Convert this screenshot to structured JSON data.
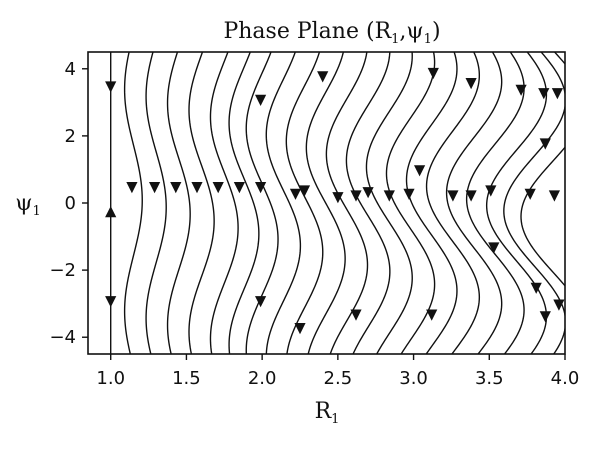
{
  "chart_data": {
    "type": "streamplot",
    "title_main": "Phase Plane (R",
    "title_sub1": "1",
    "title_mid": ",ψ",
    "title_sub2": "1",
    "title_end": ")",
    "xlabel_main": "R",
    "xlabel_sub": "1",
    "ylabel_main": "ψ",
    "ylabel_sub": "1",
    "xlim": [
      0.85,
      4.0
    ],
    "ylim": [
      -4.5,
      4.5
    ],
    "xticks": [
      1.0,
      1.5,
      2.0,
      2.5,
      3.0,
      3.5,
      4.0
    ],
    "xtick_labels": [
      "1.0",
      "1.5",
      "2.0",
      "2.5",
      "3.0",
      "3.5",
      "4.0"
    ],
    "yticks": [
      4,
      2,
      0,
      -2,
      -4
    ],
    "ytick_labels": [
      "4",
      "2",
      "0",
      "−2",
      "−4"
    ],
    "grid": false,
    "legend": "none",
    "streamline_color": "#111111",
    "streamline_r_values": [
      1.0,
      1.15,
      1.3,
      1.45,
      1.6,
      1.75,
      1.88,
      2.0,
      2.14,
      2.28,
      2.42,
      2.56,
      2.7,
      2.84,
      2.98,
      3.12,
      3.26,
      3.4,
      3.54,
      3.68,
      3.8,
      3.92
    ],
    "arrows": [
      {
        "r": 1.0,
        "psi": 3.5,
        "dir": "down"
      },
      {
        "r": 1.0,
        "psi": -0.3,
        "dir": "up"
      },
      {
        "r": 1.0,
        "psi": -2.9,
        "dir": "down"
      },
      {
        "r": 1.14,
        "psi": 0.5,
        "dir": "down"
      },
      {
        "r": 1.29,
        "psi": 0.5,
        "dir": "down"
      },
      {
        "r": 1.43,
        "psi": 0.5,
        "dir": "down"
      },
      {
        "r": 1.57,
        "psi": 0.5,
        "dir": "down"
      },
      {
        "r": 1.71,
        "psi": 0.5,
        "dir": "down"
      },
      {
        "r": 1.85,
        "psi": 0.5,
        "dir": "down"
      },
      {
        "r": 1.99,
        "psi": 0.5,
        "dir": "down"
      },
      {
        "r": 1.99,
        "psi": 3.1,
        "dir": "down"
      },
      {
        "r": 1.99,
        "psi": -2.9,
        "dir": "down"
      },
      {
        "r": 2.22,
        "psi": 0.3,
        "dir": "down"
      },
      {
        "r": 2.28,
        "psi": 0.4,
        "dir": "down"
      },
      {
        "r": 2.25,
        "psi": -3.7,
        "dir": "down"
      },
      {
        "r": 2.4,
        "psi": 3.8,
        "dir": "down"
      },
      {
        "r": 2.5,
        "psi": 0.2,
        "dir": "down"
      },
      {
        "r": 2.62,
        "psi": 0.25,
        "dir": "down"
      },
      {
        "r": 2.7,
        "psi": 0.35,
        "dir": "down"
      },
      {
        "r": 2.62,
        "psi": -3.3,
        "dir": "down"
      },
      {
        "r": 2.84,
        "psi": 0.25,
        "dir": "down"
      },
      {
        "r": 2.97,
        "psi": 0.3,
        "dir": "down"
      },
      {
        "r": 3.04,
        "psi": 1.0,
        "dir": "down"
      },
      {
        "r": 3.13,
        "psi": 3.9,
        "dir": "down"
      },
      {
        "r": 3.12,
        "psi": -3.3,
        "dir": "down"
      },
      {
        "r": 3.26,
        "psi": 0.25,
        "dir": "down"
      },
      {
        "r": 3.38,
        "psi": 0.25,
        "dir": "down"
      },
      {
        "r": 3.38,
        "psi": 3.6,
        "dir": "down"
      },
      {
        "r": 3.51,
        "psi": 0.4,
        "dir": "down"
      },
      {
        "r": 3.53,
        "psi": -1.3,
        "dir": "down"
      },
      {
        "r": 3.71,
        "psi": 3.4,
        "dir": "down"
      },
      {
        "r": 3.77,
        "psi": 0.3,
        "dir": "down"
      },
      {
        "r": 3.81,
        "psi": -2.5,
        "dir": "down"
      },
      {
        "r": 3.86,
        "psi": 3.3,
        "dir": "down"
      },
      {
        "r": 3.87,
        "psi": 1.8,
        "dir": "down"
      },
      {
        "r": 3.93,
        "psi": 0.25,
        "dir": "down"
      },
      {
        "r": 3.95,
        "psi": 3.3,
        "dir": "down"
      },
      {
        "r": 3.87,
        "psi": -3.35,
        "dir": "down"
      },
      {
        "r": 3.96,
        "psi": -3.0,
        "dir": "down"
      }
    ]
  }
}
